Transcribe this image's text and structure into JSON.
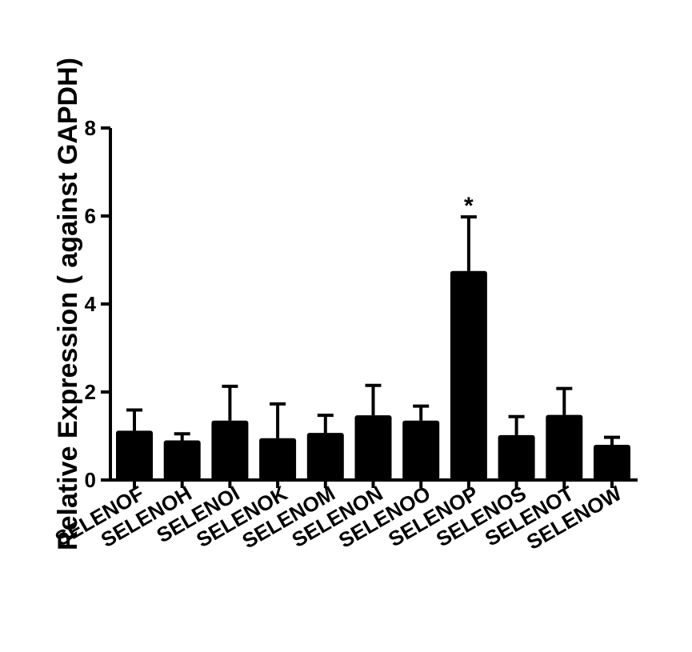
{
  "chart_data": {
    "type": "bar",
    "title": "",
    "xlabel": "",
    "ylabel": "Relative Expression ( against GAPDH)",
    "ylim": [
      0,
      8
    ],
    "yticks": [
      0,
      2,
      4,
      6,
      8
    ],
    "grid": false,
    "legend": "none",
    "bar_color": "#000000",
    "categories": [
      "SELENOF",
      "SELENOH",
      "SELENOI",
      "SELENOK",
      "SELENOM",
      "SELENON",
      "SELENOO",
      "SELENOP",
      "SELENOS",
      "SELENOT",
      "SELENOW"
    ],
    "values": [
      1.12,
      0.9,
      1.35,
      0.95,
      1.07,
      1.47,
      1.35,
      4.75,
      1.02,
      1.48,
      0.8
    ],
    "errors": [
      0.47,
      0.15,
      0.78,
      0.78,
      0.4,
      0.68,
      0.33,
      1.23,
      0.42,
      0.6,
      0.17
    ],
    "annotations": [
      {
        "category": "SELENOP",
        "text": "*"
      }
    ]
  }
}
